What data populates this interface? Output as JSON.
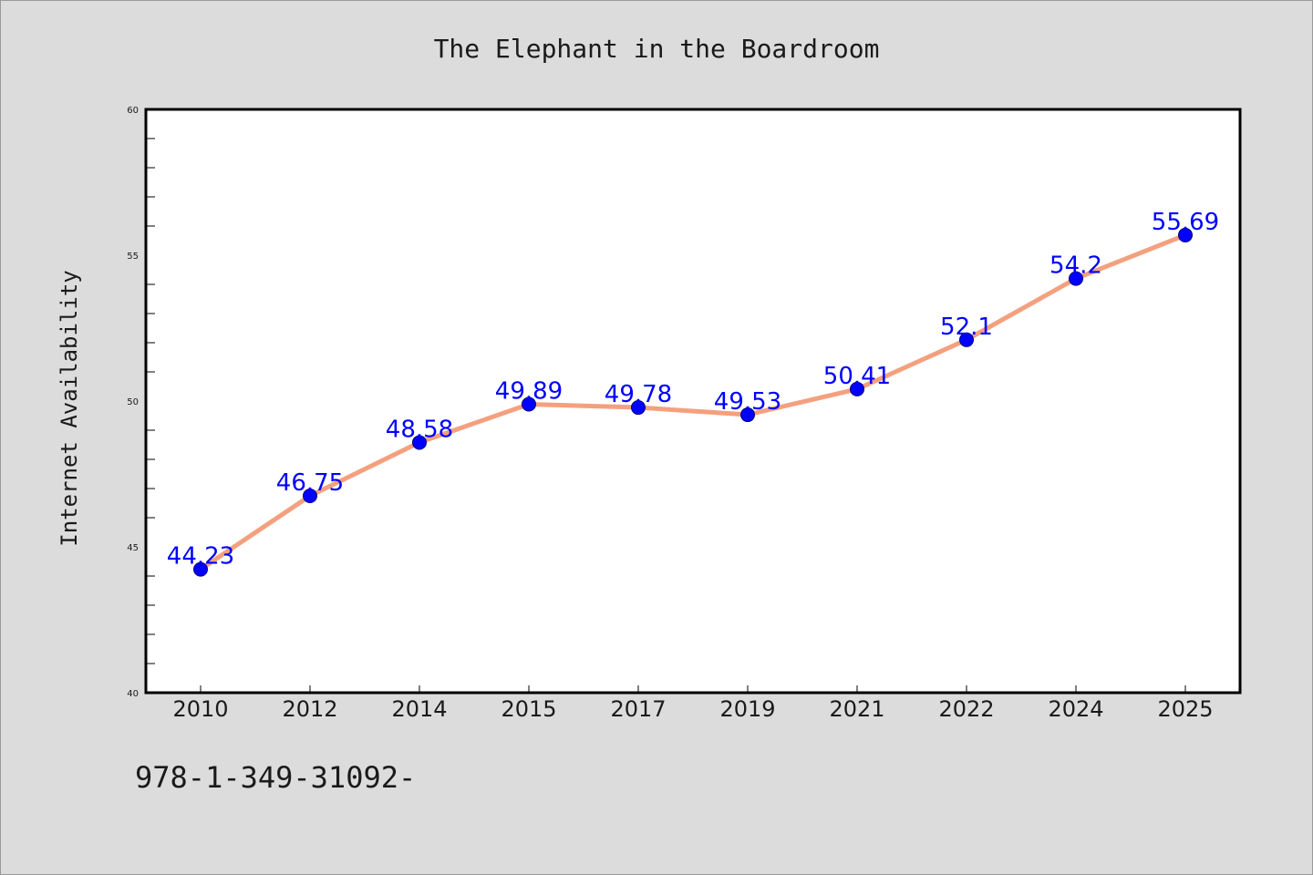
{
  "colors": {
    "background": "#dcdcdc",
    "plot_background": "#ffffff",
    "line": "#f4a07e",
    "marker": "#0000ff",
    "marker_edge": "#000080",
    "label": "#0000ff",
    "text": "#1a1a1a"
  },
  "chart_data": {
    "type": "line",
    "title": "The Elephant in the Boardroom",
    "xlabel": "",
    "ylabel": "Internet Availability",
    "categories": [
      "2010",
      "2012",
      "2014",
      "2015",
      "2017",
      "2019",
      "2021",
      "2022",
      "2024",
      "2025"
    ],
    "values": [
      44.23,
      46.75,
      48.58,
      49.89,
      49.78,
      49.53,
      50.41,
      52.1,
      54.2,
      55.69
    ],
    "value_labels": [
      "44.23",
      "46.75",
      "48.58",
      "49.89",
      "49.78",
      "49.53",
      "50.41",
      "52.1",
      "54.2",
      "55.69"
    ],
    "ylim": [
      40,
      60
    ],
    "yticks": [
      "40",
      "45",
      "50",
      "55",
      "60"
    ],
    "grid": false,
    "legend": "none"
  },
  "footer_text": "978-1-349-31092-"
}
